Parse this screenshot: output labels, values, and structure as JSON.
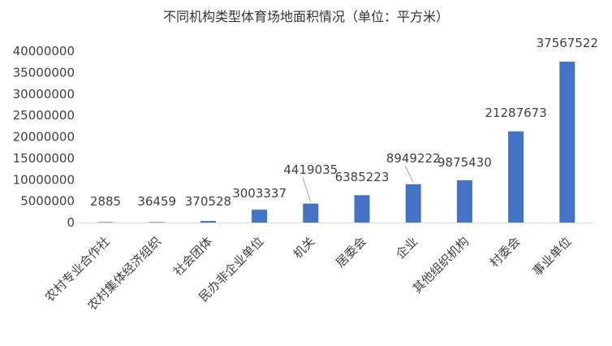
{
  "chart_data": {
    "type": "bar",
    "title": "不同机构类型体育场地面积情况（单位：平方米）",
    "categories": [
      "农村专业合作社",
      "农村集体经济组织",
      "社会团体",
      "民办非企业单位",
      "机关",
      "居委会",
      "企业",
      "其他组织机构",
      "村委会",
      "事业单位"
    ],
    "values": [
      2885,
      36459,
      370528,
      3003337,
      4419035,
      6385223,
      8949222,
      9875430,
      21287673,
      37567522
    ],
    "ylim": [
      0,
      40000000
    ],
    "yticks": [
      "0",
      "5000000",
      "10000000",
      "15000000",
      "20000000",
      "25000000",
      "30000000",
      "35000000",
      "40000000"
    ],
    "xlabel": "",
    "ylabel": "",
    "grid": false,
    "legend": "none",
    "colors": {
      "bar": "#4472C4",
      "axis": "#d9d9d9",
      "leader": "#a6a6a6"
    }
  }
}
